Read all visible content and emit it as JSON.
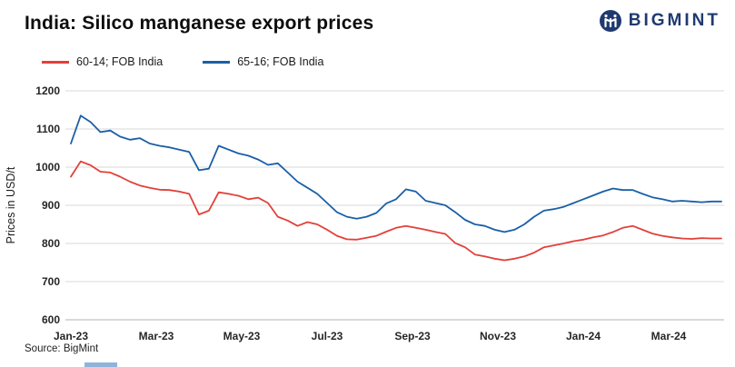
{
  "header": {
    "title": "India: Silico manganese export prices",
    "logo_text": "BIGMINT"
  },
  "footer": {
    "source": "Source: BigMint"
  },
  "colors": {
    "grid": "#d9d9d9",
    "axis_line": "#b3b3b3",
    "axis_text": "#262626",
    "logo_navy": "#203a70"
  },
  "chart_data": {
    "type": "line",
    "title": "India: Silico manganese export prices",
    "xlabel": "",
    "ylabel": "Prices in USD/t",
    "ylim": [
      600,
      1200
    ],
    "ytick_step": 100,
    "grid": "horizontal",
    "legend_position": "top-left",
    "categories": [
      "Jan-23",
      "Mar-23",
      "May-23",
      "Jul-23",
      "Sep-23",
      "Nov-23",
      "Jan-24",
      "Mar-24"
    ],
    "x_start": "Jan-23",
    "x_end": "Apr-24",
    "sampling": "weekly-approximate",
    "series": [
      {
        "name": "60-14; FOB India",
        "color": "#e2403a",
        "values": [
          975,
          1015,
          1005,
          988,
          986,
          975,
          962,
          952,
          946,
          941,
          940,
          936,
          930,
          876,
          886,
          934,
          930,
          925,
          916,
          920,
          906,
          870,
          860,
          846,
          856,
          850,
          836,
          820,
          811,
          810,
          815,
          820,
          831,
          841,
          846,
          841,
          836,
          830,
          825,
          801,
          790,
          771,
          766,
          760,
          756,
          760,
          766,
          776,
          790,
          795,
          800,
          806,
          810,
          816,
          821,
          830,
          841,
          846,
          836,
          826,
          820,
          816,
          813,
          812,
          814,
          813,
          813
        ]
      },
      {
        "name": "65-16; FOB India",
        "color": "#1a5fa6",
        "values": [
          1062,
          1135,
          1118,
          1092,
          1096,
          1080,
          1072,
          1076,
          1062,
          1056,
          1052,
          1046,
          1040,
          992,
          996,
          1056,
          1046,
          1036,
          1030,
          1020,
          1006,
          1010,
          986,
          962,
          946,
          930,
          906,
          882,
          870,
          865,
          870,
          880,
          905,
          916,
          942,
          936,
          912,
          906,
          900,
          882,
          862,
          850,
          846,
          836,
          830,
          836,
          850,
          870,
          886,
          890,
          896,
          906,
          916,
          926,
          936,
          944,
          940,
          940,
          930,
          921,
          916,
          910,
          912,
          910,
          908,
          910,
          910
        ]
      }
    ]
  }
}
